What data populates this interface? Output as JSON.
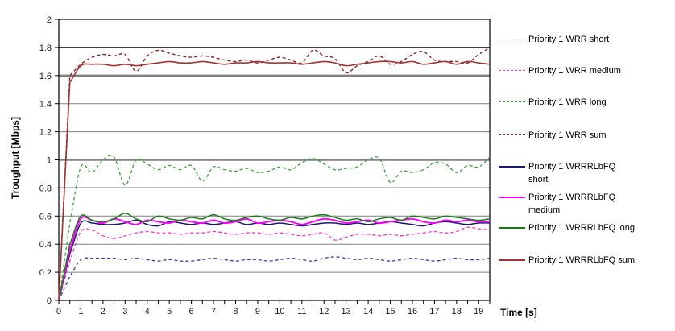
{
  "chart_data": {
    "type": "line",
    "title": "",
    "xlabel": "Time [s]",
    "ylabel": "Troughput [Mbps]",
    "xlim": [
      0,
      19.5
    ],
    "ylim": [
      0,
      2
    ],
    "grid": "horizontal",
    "legend_position": "right",
    "x_start": 0,
    "x_step": 0.5,
    "x_minor_tick_step": 0.5,
    "x_tick_labels": [
      "0",
      "1",
      "2",
      "3",
      "4",
      "5",
      "6",
      "7",
      "8",
      "9",
      "10",
      "11",
      "12",
      "13",
      "14",
      "15",
      "16",
      "17",
      "18",
      "19"
    ],
    "y_tick_values": [
      0,
      0.2,
      0.4,
      0.6,
      0.8,
      1,
      1.2,
      1.4,
      1.6,
      1.8,
      2
    ],
    "y_tick_labels": [
      "0",
      "0.2",
      "0.4",
      "0.6",
      "0.8",
      "1",
      "1.2",
      "1.4",
      "1.6",
      "1.8",
      "2"
    ],
    "gridlines": {
      "black": [
        0.8,
        1.8
      ],
      "gray_thick": [
        1.0,
        1.6
      ],
      "gray_thin": [
        0.2,
        0.4,
        0.6,
        1.2,
        1.4
      ],
      "gray_color": "#808080",
      "black_color": "#000000"
    },
    "series": [
      {
        "id": "wrr-short",
        "name": "Priority 1 WRR short",
        "color": "#3b3bb5",
        "style": "dashed",
        "width": 1.3,
        "values": [
          0,
          0.17,
          0.29,
          0.3,
          0.3,
          0.3,
          0.29,
          0.3,
          0.29,
          0.28,
          0.29,
          0.28,
          0.28,
          0.29,
          0.3,
          0.29,
          0.28,
          0.29,
          0.29,
          0.28,
          0.29,
          0.3,
          0.29,
          0.28,
          0.3,
          0.31,
          0.3,
          0.29,
          0.3,
          0.29,
          0.28,
          0.29,
          0.3,
          0.29,
          0.28,
          0.29,
          0.3,
          0.29,
          0.29,
          0.3
        ]
      },
      {
        "id": "wrr-medium",
        "name": "Priority 1 WRR medium",
        "color": "#ff33cc",
        "style": "dashed",
        "width": 1.3,
        "values": [
          0,
          0.28,
          0.49,
          0.5,
          0.46,
          0.44,
          0.46,
          0.48,
          0.49,
          0.48,
          0.48,
          0.47,
          0.48,
          0.48,
          0.49,
          0.48,
          0.47,
          0.48,
          0.48,
          0.47,
          0.48,
          0.47,
          0.46,
          0.47,
          0.48,
          0.43,
          0.45,
          0.47,
          0.47,
          0.46,
          0.47,
          0.46,
          0.47,
          0.48,
          0.49,
          0.48,
          0.49,
          0.52,
          0.51,
          0.5
        ]
      },
      {
        "id": "wrr-long",
        "name": "Priority 1 WRR long",
        "color": "#3aa33a",
        "style": "dashed",
        "width": 1.3,
        "values": [
          0,
          0.55,
          0.95,
          0.91,
          1.0,
          1.02,
          0.82,
          1.0,
          0.97,
          0.93,
          0.96,
          0.93,
          0.96,
          0.85,
          0.95,
          0.93,
          0.92,
          0.94,
          0.91,
          0.92,
          0.95,
          0.93,
          0.98,
          1.01,
          0.97,
          0.93,
          0.94,
          0.95,
          1.0,
          1.01,
          0.84,
          0.92,
          0.91,
          0.93,
          0.98,
          0.97,
          0.91,
          0.96,
          0.95,
          1.02
        ]
      },
      {
        "id": "wrr-sum",
        "name": "Priority 1 WRR sum",
        "color": "#8b2323",
        "style": "dashed",
        "width": 1.4,
        "values": [
          0,
          1.6,
          1.68,
          1.73,
          1.75,
          1.74,
          1.75,
          1.63,
          1.74,
          1.78,
          1.76,
          1.74,
          1.73,
          1.74,
          1.73,
          1.71,
          1.7,
          1.71,
          1.69,
          1.71,
          1.73,
          1.71,
          1.69,
          1.78,
          1.74,
          1.72,
          1.62,
          1.67,
          1.7,
          1.74,
          1.68,
          1.7,
          1.75,
          1.77,
          1.71,
          1.7,
          1.7,
          1.69,
          1.75,
          1.8
        ]
      },
      {
        "id": "wrrrlbfq-short",
        "name": "Priority 1 WRRRLbFQ short",
        "color": "#191970",
        "style": "solid",
        "width": 1.5,
        "values": [
          0,
          0.33,
          0.55,
          0.55,
          0.54,
          0.54,
          0.55,
          0.57,
          0.54,
          0.53,
          0.56,
          0.55,
          0.54,
          0.55,
          0.54,
          0.55,
          0.56,
          0.54,
          0.55,
          0.54,
          0.55,
          0.54,
          0.53,
          0.54,
          0.55,
          0.55,
          0.54,
          0.55,
          0.54,
          0.55,
          0.56,
          0.55,
          0.54,
          0.53,
          0.55,
          0.56,
          0.55,
          0.54,
          0.55,
          0.55
        ]
      },
      {
        "id": "wrrrlbfq-medium",
        "name": "Priority 1 WRRRLbFQ medium",
        "color": "#ff00ff",
        "style": "solid",
        "width": 1.9,
        "values": [
          0,
          0.36,
          0.58,
          0.57,
          0.55,
          0.58,
          0.56,
          0.54,
          0.57,
          0.56,
          0.55,
          0.57,
          0.56,
          0.55,
          0.57,
          0.55,
          0.56,
          0.58,
          0.55,
          0.56,
          0.57,
          0.56,
          0.54,
          0.56,
          0.58,
          0.57,
          0.55,
          0.56,
          0.57,
          0.55,
          0.56,
          0.57,
          0.58,
          0.56,
          0.55,
          0.57,
          0.56,
          0.57,
          0.56,
          0.56
        ]
      },
      {
        "id": "wrrrlbfq-long",
        "name": "Priority 1 WRRRLbFQ long",
        "color": "#1a7a1a",
        "style": "solid",
        "width": 1.5,
        "values": [
          0,
          0.4,
          0.6,
          0.57,
          0.56,
          0.58,
          0.62,
          0.58,
          0.56,
          0.6,
          0.58,
          0.57,
          0.59,
          0.58,
          0.61,
          0.58,
          0.57,
          0.59,
          0.6,
          0.58,
          0.57,
          0.59,
          0.58,
          0.6,
          0.61,
          0.59,
          0.57,
          0.58,
          0.56,
          0.58,
          0.59,
          0.57,
          0.6,
          0.59,
          0.58,
          0.6,
          0.59,
          0.58,
          0.57,
          0.58
        ]
      },
      {
        "id": "wrrrlbfq-sum",
        "name": "Priority 1 WRRRLbFQ sum",
        "color": "#a03434",
        "style": "solid",
        "width": 1.6,
        "values": [
          0,
          1.55,
          1.67,
          1.68,
          1.68,
          1.67,
          1.68,
          1.67,
          1.68,
          1.69,
          1.7,
          1.69,
          1.69,
          1.7,
          1.69,
          1.68,
          1.69,
          1.69,
          1.7,
          1.69,
          1.69,
          1.69,
          1.68,
          1.69,
          1.7,
          1.69,
          1.67,
          1.68,
          1.69,
          1.7,
          1.7,
          1.69,
          1.7,
          1.68,
          1.69,
          1.7,
          1.68,
          1.7,
          1.69,
          1.68
        ]
      }
    ]
  },
  "legend": {
    "items": [
      {
        "series": "wrr-short",
        "lines": [
          "Priority 1 WRR short"
        ]
      },
      {
        "series": "wrr-medium",
        "lines": [
          "Priority 1 WRR medium"
        ]
      },
      {
        "series": "wrr-long",
        "lines": [
          "Priority 1 WRR long"
        ]
      },
      {
        "series": "wrr-sum",
        "lines": [
          "Priority 1 WRR sum"
        ]
      },
      {
        "series": "wrrrlbfq-short",
        "lines": [
          "Priority 1 WRRRLbFQ",
          "short"
        ]
      },
      {
        "series": "wrrrlbfq-medium",
        "lines": [
          "Priority 1 WRRRLbFQ",
          "medium"
        ]
      },
      {
        "series": "wrrrlbfq-long",
        "lines": [
          "Priority 1 WRRRLbFQ long"
        ]
      },
      {
        "series": "wrrrlbfq-sum",
        "lines": [
          "Priority 1 WRRRLbFQ sum"
        ]
      }
    ]
  }
}
